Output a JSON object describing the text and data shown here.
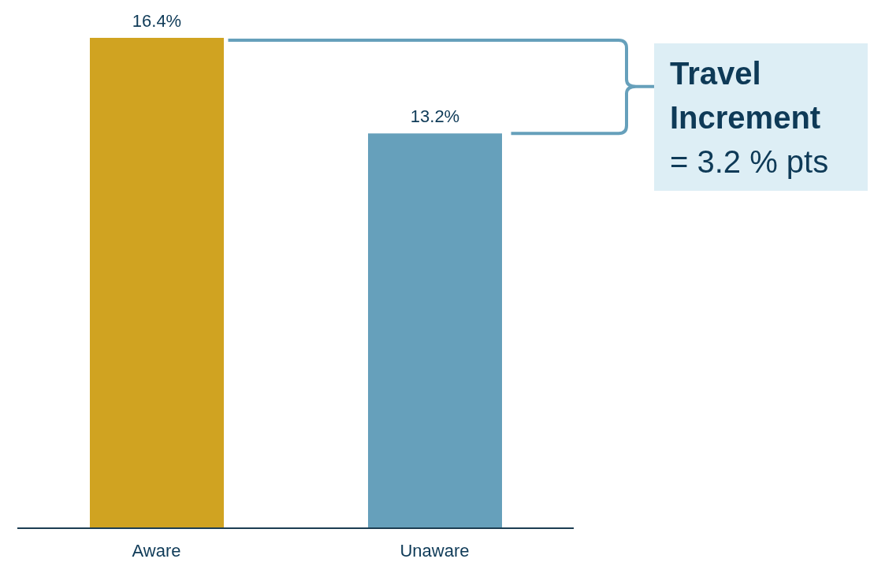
{
  "chart_data": {
    "type": "bar",
    "categories": [
      "Aware",
      "Unaware"
    ],
    "values": [
      16.4,
      13.2
    ],
    "colors": [
      "#d0a321",
      "#66a0bb"
    ],
    "value_labels": [
      "16.4%",
      "13.2%"
    ],
    "annotations": [
      "Travel Increment",
      "= 3.2 % pts"
    ]
  }
}
